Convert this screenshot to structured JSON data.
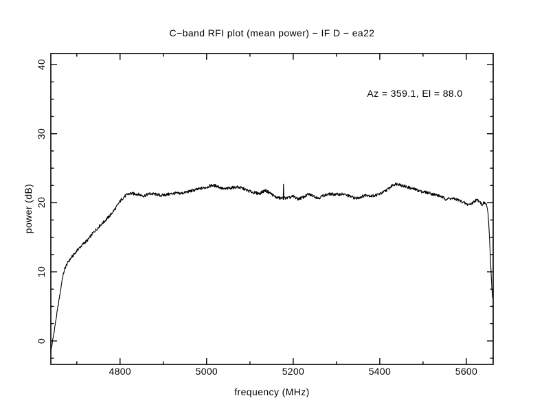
{
  "page": {
    "background_color": "#ffffff",
    "ink_color": "#000000"
  },
  "chart_data": {
    "type": "line",
    "title": "C−band RFI plot (mean power) − IF D − ea22",
    "xlabel": "frequency (MHz)",
    "ylabel": "power (dB)",
    "annotation": "Az = 359.1, El = 88.0",
    "xlim": [
      4640,
      5662
    ],
    "ylim": [
      -3.4,
      41.6
    ],
    "x_major_ticks": [
      4800,
      5000,
      5200,
      5400,
      5600
    ],
    "x_minor_step": 100,
    "y_major_ticks": [
      0,
      10,
      20,
      30,
      40
    ],
    "y_minor_step": 2.5,
    "grid": false,
    "legend": "none",
    "line_color": "#000000",
    "series": [
      {
        "name": "mean power",
        "noise_amp_db": 0.22,
        "spike": {
          "freq_mhz": 5178,
          "power_db": 22.7
        },
        "profile_freq_power": [
          [
            4640,
            -1.6
          ],
          [
            4648,
            1.5
          ],
          [
            4658,
            5.5
          ],
          [
            4666,
            8.8
          ],
          [
            4672,
            10.4
          ],
          [
            4680,
            11.4
          ],
          [
            4692,
            12.4
          ],
          [
            4702,
            13.2
          ],
          [
            4715,
            14.1
          ],
          [
            4726,
            14.7
          ],
          [
            4738,
            15.7
          ],
          [
            4752,
            16.6
          ],
          [
            4766,
            17.4
          ],
          [
            4778,
            18.2
          ],
          [
            4790,
            19.2
          ],
          [
            4800,
            20.2
          ],
          [
            4808,
            20.8
          ],
          [
            4816,
            21.2
          ],
          [
            4824,
            21.4
          ],
          [
            4840,
            21.3
          ],
          [
            4855,
            21.0
          ],
          [
            4868,
            21.3
          ],
          [
            4880,
            21.2
          ],
          [
            4895,
            21.0
          ],
          [
            4910,
            21.2
          ],
          [
            4925,
            21.4
          ],
          [
            4940,
            21.4
          ],
          [
            4955,
            21.6
          ],
          [
            4970,
            21.8
          ],
          [
            4985,
            22.0
          ],
          [
            5000,
            22.2
          ],
          [
            5012,
            22.5
          ],
          [
            5025,
            22.4
          ],
          [
            5040,
            22.0
          ],
          [
            5055,
            22.2
          ],
          [
            5070,
            22.3
          ],
          [
            5082,
            22.1
          ],
          [
            5095,
            21.7
          ],
          [
            5110,
            21.4
          ],
          [
            5122,
            21.3
          ],
          [
            5135,
            21.8
          ],
          [
            5148,
            21.4
          ],
          [
            5158,
            20.9
          ],
          [
            5170,
            20.7
          ],
          [
            5190,
            20.7
          ],
          [
            5200,
            20.9
          ],
          [
            5210,
            20.5
          ],
          [
            5222,
            20.7
          ],
          [
            5235,
            21.2
          ],
          [
            5248,
            21.0
          ],
          [
            5258,
            20.7
          ],
          [
            5270,
            21.1
          ],
          [
            5285,
            21.3
          ],
          [
            5300,
            21.2
          ],
          [
            5315,
            21.2
          ],
          [
            5330,
            20.9
          ],
          [
            5345,
            20.6
          ],
          [
            5358,
            20.9
          ],
          [
            5370,
            21.2
          ],
          [
            5382,
            21.0
          ],
          [
            5395,
            21.2
          ],
          [
            5408,
            21.5
          ],
          [
            5420,
            22.0
          ],
          [
            5432,
            22.6
          ],
          [
            5442,
            22.7
          ],
          [
            5455,
            22.4
          ],
          [
            5468,
            22.2
          ],
          [
            5480,
            22.0
          ],
          [
            5495,
            21.7
          ],
          [
            5510,
            21.5
          ],
          [
            5525,
            21.2
          ],
          [
            5540,
            20.9
          ],
          [
            5552,
            20.5
          ],
          [
            5565,
            20.6
          ],
          [
            5578,
            20.5
          ],
          [
            5590,
            20.2
          ],
          [
            5602,
            19.8
          ],
          [
            5612,
            19.9
          ],
          [
            5622,
            20.4
          ],
          [
            5630,
            20.3
          ],
          [
            5636,
            19.7
          ],
          [
            5642,
            20.0
          ],
          [
            5647,
            19.6
          ],
          [
            5650,
            18.5
          ],
          [
            5653,
            15.5
          ],
          [
            5656,
            11.5
          ],
          [
            5659,
            7.5
          ],
          [
            5661,
            6.0
          ]
        ]
      }
    ]
  }
}
